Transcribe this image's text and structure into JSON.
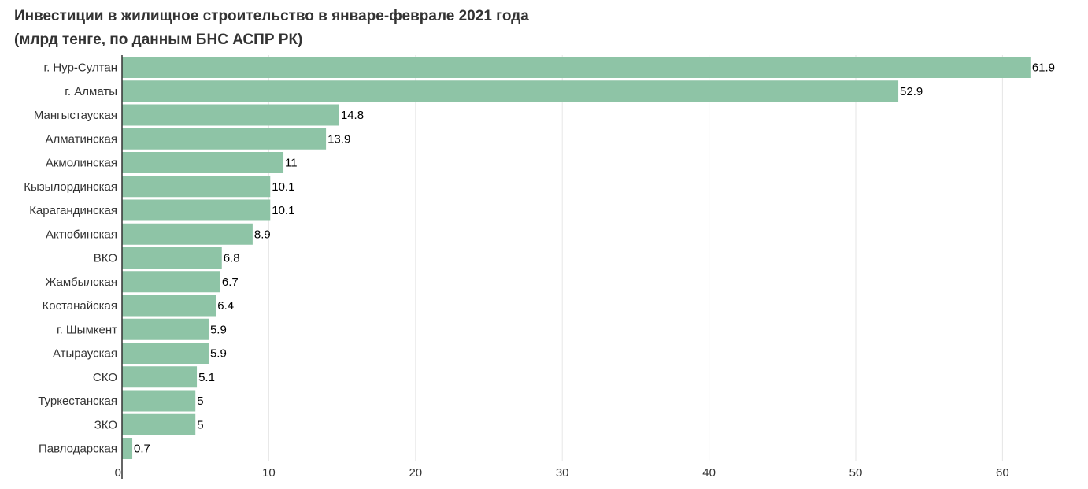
{
  "chart_data": {
    "type": "bar",
    "orientation": "horizontal",
    "title": "Инвестиции в жилищное строительство в январе-феврале 2021 года",
    "subtitle": "(млрд тенге, по данным БНС АСПР РК)",
    "categories": [
      "г. Нур-Султан",
      "г. Алматы",
      "Мангыстауская",
      "Алматинская",
      "Акмолинская",
      "Кызылординская",
      "Карагандинская",
      "Актюбинская",
      "ВКО",
      "Жамбылская",
      "Костанайская",
      "г. Шымкент",
      "Атырауская",
      "СКО",
      "Туркестанская",
      "ЗКО",
      "Павлодарская"
    ],
    "values": [
      61.9,
      52.9,
      14.8,
      13.9,
      11,
      10.1,
      10.1,
      8.9,
      6.8,
      6.7,
      6.4,
      5.9,
      5.9,
      5.1,
      5,
      5,
      0.7
    ],
    "value_labels": [
      "61.9",
      "52.9",
      "14.8",
      "13.9",
      "11",
      "10.1",
      "10.1",
      "8.9",
      "6.8",
      "6.7",
      "6.4",
      "5.9",
      "5.9",
      "5.1",
      "5",
      "5",
      "0.7"
    ],
    "xticks": [
      "0",
      "10",
      "20",
      "30",
      "40",
      "50",
      "60"
    ],
    "xlim": [
      0,
      64.5
    ],
    "grid": true,
    "bar_color": "#8ec4a6",
    "grid_color": "#e6e6e6"
  }
}
